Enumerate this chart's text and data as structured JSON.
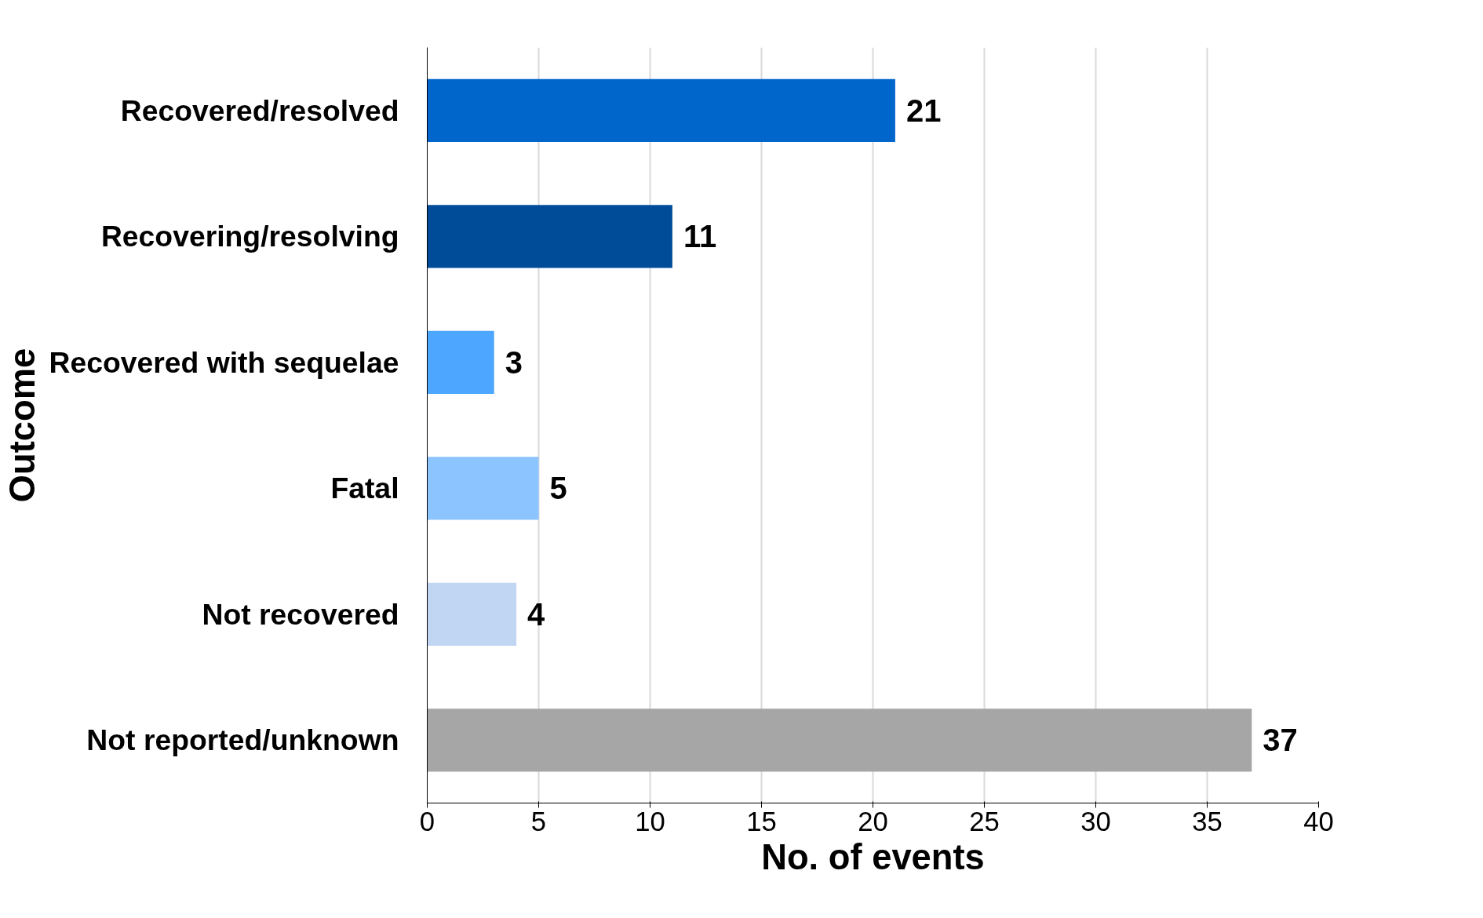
{
  "chart_data": {
    "type": "bar",
    "orientation": "horizontal",
    "categories": [
      "Recovered/resolved",
      "Recovering/resolving",
      "Recovered with sequelae",
      "Fatal",
      "Not recovered",
      "Not reported/unknown"
    ],
    "values": [
      21,
      11,
      3,
      5,
      4,
      37
    ],
    "colors": [
      "#0066cc",
      "#004c99",
      "#4da6ff",
      "#8cc4ff",
      "#c0d6f2",
      "#a6a6a6"
    ],
    "xlim": [
      0,
      40
    ],
    "xticks": [
      0,
      5,
      10,
      15,
      20,
      25,
      30,
      35,
      40
    ],
    "xlabel": "No. of events",
    "ylabel": "Outcome",
    "grid": "x",
    "data_labels": true
  }
}
